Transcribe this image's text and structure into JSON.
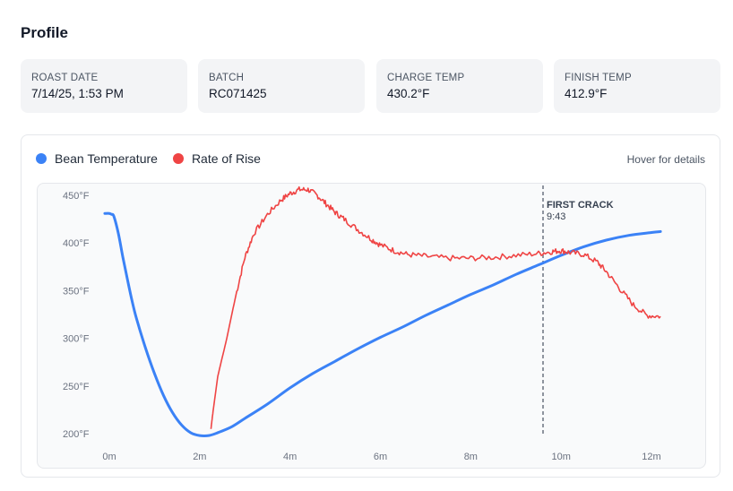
{
  "page": {
    "title": "Profile"
  },
  "stats": [
    {
      "label": "ROAST DATE",
      "value": "7/14/25, 1:53 PM"
    },
    {
      "label": "BATCH",
      "value": "RC071425"
    },
    {
      "label": "CHARGE TEMP",
      "value": "430.2°F"
    },
    {
      "label": "FINISH TEMP",
      "value": "412.9°F"
    }
  ],
  "legend": {
    "bean": "Bean Temperature",
    "ror": "Rate of Rise",
    "hint": "Hover for details"
  },
  "colors": {
    "bean": "#3b82f6",
    "ror": "#ef4444",
    "marker": "#6b7280"
  },
  "chart_data": {
    "type": "line",
    "xlim": [
      0,
      12
    ],
    "ylim": [
      190,
      455
    ],
    "grid": false,
    "legend_position": "top-left",
    "y_ticks": [
      {
        "value": 200,
        "label": "200°F"
      },
      {
        "value": 250,
        "label": "250°F"
      },
      {
        "value": 300,
        "label": "300°F"
      },
      {
        "value": 350,
        "label": "350°F"
      },
      {
        "value": 400,
        "label": "400°F"
      },
      {
        "value": 450,
        "label": "450°F"
      }
    ],
    "x_ticks": [
      {
        "value": 0,
        "label": "0m"
      },
      {
        "value": 2,
        "label": "2m"
      },
      {
        "value": 4,
        "label": "4m"
      },
      {
        "value": 6,
        "label": "6m"
      },
      {
        "value": 8,
        "label": "8m"
      },
      {
        "value": 10,
        "label": "10m"
      },
      {
        "value": 12,
        "label": "12m"
      }
    ],
    "annotations": [
      {
        "x": 9.6,
        "label": "FIRST CRACK",
        "sublabel": "9:43"
      }
    ],
    "series": [
      {
        "name": "Bean Temperature",
        "x": [
          -0.1,
          0.0,
          0.05,
          0.1,
          0.2,
          0.3,
          0.4,
          0.5,
          0.6,
          0.8,
          1.0,
          1.2,
          1.4,
          1.6,
          1.8,
          2.0,
          2.2,
          2.4,
          2.7,
          3.0,
          3.5,
          4.0,
          4.5,
          5.0,
          5.5,
          6.0,
          6.5,
          7.0,
          7.5,
          8.0,
          8.5,
          9.0,
          9.5,
          10.0,
          10.5,
          11.0,
          11.5,
          12.0,
          12.2
        ],
        "y": [
          431,
          431,
          430,
          428,
          410,
          385,
          362,
          340,
          321,
          290,
          263,
          240,
          222,
          209,
          201,
          198,
          198,
          201,
          207,
          216,
          231,
          248,
          263,
          276,
          289,
          301,
          312,
          324,
          335,
          346,
          356,
          367,
          377,
          387,
          396,
          403,
          408,
          411,
          412
        ]
      },
      {
        "name": "Rate of Rise",
        "x": [
          2.25,
          2.3,
          2.4,
          2.6,
          2.8,
          3.0,
          3.2,
          3.5,
          3.8,
          4.0,
          4.2,
          4.4,
          4.6,
          4.8,
          5.0,
          5.2,
          5.5,
          5.8,
          6.0,
          6.3,
          6.6,
          7.0,
          7.5,
          8.0,
          8.5,
          9.0,
          9.5,
          9.8,
          10.0,
          10.2,
          10.5,
          10.8,
          11.0,
          11.3,
          11.6,
          11.9,
          12.2
        ],
        "y": [
          205,
          225,
          260,
          300,
          345,
          385,
          410,
          430,
          445,
          452,
          456,
          456,
          450,
          441,
          432,
          425,
          414,
          404,
          398,
          392,
          388,
          386,
          384,
          384,
          385,
          387,
          389,
          391,
          392,
          390,
          388,
          380,
          370,
          352,
          335,
          324,
          323
        ]
      }
    ]
  }
}
